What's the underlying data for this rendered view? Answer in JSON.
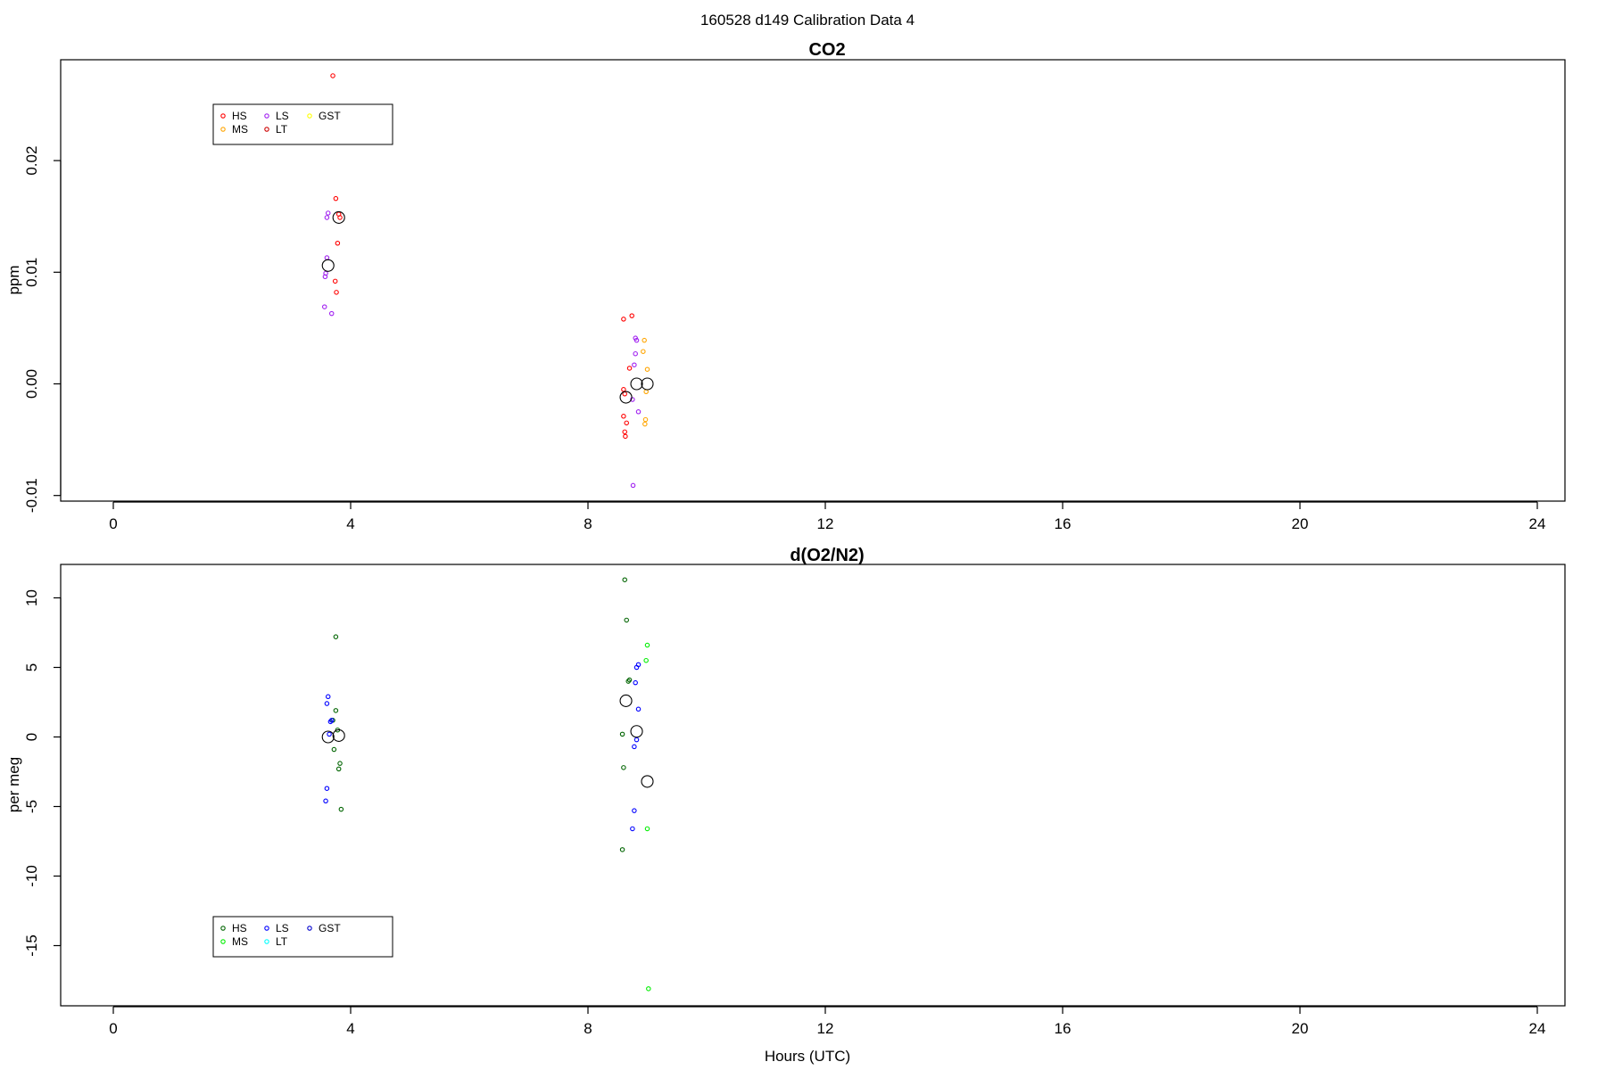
{
  "figure_title": "160528   d149   Calibration Data 4",
  "x_axis_label": "Hours (UTC)",
  "chart_data": [
    {
      "type": "scatter",
      "title": "CO2",
      "xlabel": "",
      "ylabel": "ppm",
      "xlim": [
        0,
        24
      ],
      "ylim": [
        -0.01,
        0.028
      ],
      "x_ticks": [
        0,
        4,
        8,
        12,
        16,
        20,
        24
      ],
      "y_ticks": [
        -0.01,
        0.0,
        0.01,
        0.02
      ],
      "y_tick_labels": [
        "-0.01",
        "0.00",
        "0.01",
        "0.02"
      ],
      "legend": {
        "placement": "top-left",
        "entries": [
          {
            "name": "HS",
            "color": "#ff0000"
          },
          {
            "name": "MS",
            "color": "#ffa500"
          },
          {
            "name": "LS",
            "color": "#a020f0"
          },
          {
            "name": "LT",
            "color": "#cd0000"
          },
          {
            "name": "GST",
            "color": "#ffff00"
          }
        ]
      },
      "series": [
        {
          "name": "HS",
          "color": "#ff0000",
          "points": [
            [
              3.7,
              0.0276
            ],
            [
              3.75,
              0.0166
            ],
            [
              3.8,
              0.0152
            ],
            [
              3.82,
              0.0149
            ],
            [
              3.78,
              0.0126
            ],
            [
              3.74,
              0.0092
            ],
            [
              3.76,
              0.0082
            ],
            [
              8.6,
              0.0058
            ],
            [
              8.7,
              0.0014
            ],
            [
              8.6,
              -0.0005
            ],
            [
              8.62,
              -0.0009
            ],
            [
              8.6,
              -0.0029
            ],
            [
              8.65,
              -0.0035
            ],
            [
              8.62,
              -0.0043
            ],
            [
              8.63,
              -0.0047
            ],
            [
              8.74,
              0.0061
            ]
          ]
        },
        {
          "name": "MS",
          "color": "#ffa500",
          "points": [
            [
              8.95,
              0.0039
            ],
            [
              8.93,
              0.0029
            ],
            [
              9.0,
              0.0013
            ],
            [
              8.98,
              -0.0007
            ],
            [
              8.97,
              -0.0032
            ],
            [
              8.96,
              -0.0036
            ]
          ]
        },
        {
          "name": "LS",
          "color": "#a020f0",
          "points": [
            [
              3.62,
              0.0153
            ],
            [
              3.6,
              0.0149
            ],
            [
              3.6,
              0.0113
            ],
            [
              3.58,
              0.0099
            ],
            [
              3.57,
              0.0096
            ],
            [
              3.56,
              0.0069
            ],
            [
              3.68,
              0.0063
            ],
            [
              8.8,
              0.0041
            ],
            [
              8.82,
              0.0039
            ],
            [
              8.78,
              0.0017
            ],
            [
              8.8,
              0.0027
            ],
            [
              8.75,
              -0.0014
            ],
            [
              8.85,
              -0.0025
            ],
            [
              8.76,
              -0.0091
            ]
          ]
        }
      ],
      "averages": [
        [
          3.62,
          0.0106
        ],
        [
          3.8,
          0.0149
        ],
        [
          8.64,
          -0.0012
        ],
        [
          8.82,
          0.0
        ],
        [
          9.0,
          0.0
        ]
      ]
    },
    {
      "type": "scatter",
      "title": "d(O2/N2)",
      "xlabel": "Hours (UTC)",
      "ylabel": "per meg",
      "xlim": [
        0,
        24
      ],
      "ylim": [
        -19,
        12
      ],
      "x_ticks": [
        0,
        4,
        8,
        12,
        16,
        20,
        24
      ],
      "y_ticks": [
        -15,
        -10,
        -5,
        0,
        5,
        10
      ],
      "y_tick_labels": [
        "-15",
        "-10",
        "-5",
        "0",
        "5",
        "10"
      ],
      "legend": {
        "placement": "bottom-left",
        "entries": [
          {
            "name": "HS",
            "color": "#006400"
          },
          {
            "name": "MS",
            "color": "#00ee00"
          },
          {
            "name": "LS",
            "color": "#0000ff"
          },
          {
            "name": "LT",
            "color": "#00ffff"
          },
          {
            "name": "GST",
            "color": "#0000cd"
          }
        ]
      },
      "series": [
        {
          "name": "HS",
          "color": "#006400",
          "points": [
            [
              3.75,
              7.2
            ],
            [
              3.75,
              1.9
            ],
            [
              3.7,
              1.2
            ],
            [
              3.78,
              0.5
            ],
            [
              3.72,
              -0.9
            ],
            [
              3.82,
              -1.9
            ],
            [
              3.8,
              -2.3
            ],
            [
              3.84,
              -5.2
            ],
            [
              8.62,
              11.3
            ],
            [
              8.65,
              8.4
            ],
            [
              8.7,
              4.1
            ],
            [
              8.68,
              4.0
            ],
            [
              8.58,
              0.2
            ],
            [
              8.6,
              -2.2
            ],
            [
              8.58,
              -8.1
            ]
          ]
        },
        {
          "name": "MS",
          "color": "#00ee00",
          "points": [
            [
              9.0,
              6.6
            ],
            [
              8.98,
              5.5
            ],
            [
              9.0,
              -6.6
            ],
            [
              9.02,
              -18.1
            ]
          ]
        },
        {
          "name": "LS",
          "color": "#0000ff",
          "points": [
            [
              3.62,
              2.9
            ],
            [
              3.6,
              2.4
            ],
            [
              3.66,
              1.1
            ],
            [
              3.68,
              1.2
            ],
            [
              3.64,
              0.2
            ],
            [
              3.6,
              -3.7
            ],
            [
              3.58,
              -4.6
            ],
            [
              8.85,
              5.2
            ],
            [
              8.82,
              5.0
            ],
            [
              8.8,
              3.9
            ],
            [
              8.85,
              2.0
            ],
            [
              8.82,
              -0.2
            ],
            [
              8.78,
              -0.7
            ],
            [
              8.78,
              -5.3
            ],
            [
              8.75,
              -6.6
            ]
          ]
        }
      ],
      "averages": [
        [
          3.62,
          0.0
        ],
        [
          3.8,
          0.1
        ],
        [
          8.64,
          2.6
        ],
        [
          8.82,
          0.4
        ],
        [
          9.0,
          -3.2
        ]
      ]
    }
  ]
}
